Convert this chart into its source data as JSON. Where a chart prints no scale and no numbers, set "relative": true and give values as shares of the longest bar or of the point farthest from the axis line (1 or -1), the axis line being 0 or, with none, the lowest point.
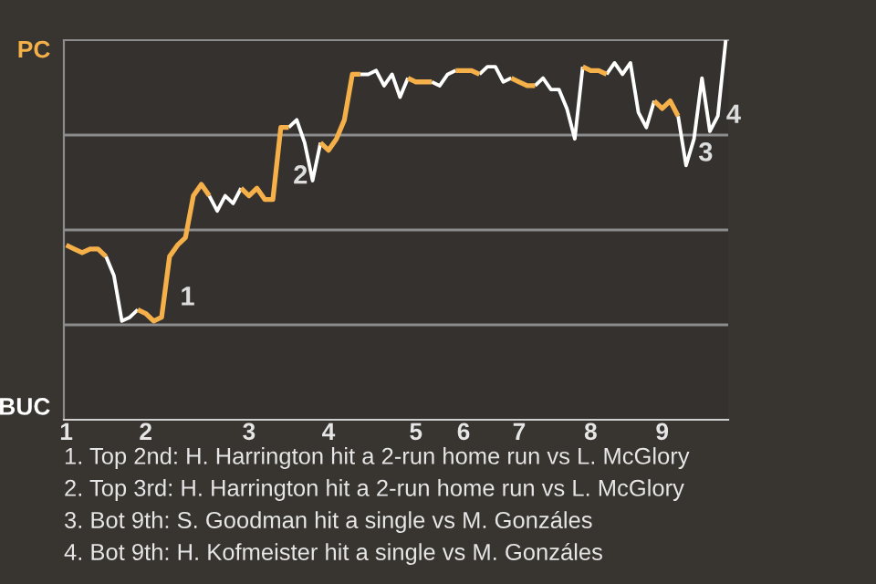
{
  "chart_data": {
    "type": "line",
    "relative": true,
    "categories": [
      "1",
      null,
      null,
      null,
      null,
      null,
      null,
      null,
      null,
      null,
      "2",
      null,
      null,
      null,
      null,
      null,
      null,
      null,
      null,
      null,
      null,
      null,
      null,
      "3",
      null,
      null,
      null,
      null,
      null,
      null,
      null,
      null,
      null,
      "4",
      null,
      null,
      null,
      null,
      null,
      null,
      null,
      null,
      null,
      null,
      "5",
      null,
      null,
      null,
      null,
      null,
      "6",
      null,
      null,
      null,
      null,
      null,
      null,
      "7",
      null,
      null,
      null,
      null,
      null,
      null,
      null,
      null,
      "8",
      null,
      null,
      null,
      null,
      null,
      null,
      null,
      null,
      "9",
      null,
      null,
      null,
      null,
      null,
      null,
      null,
      null
    ],
    "series": [
      {
        "color": "#f5b04a",
        "values": [
          0.46,
          0.45,
          0.44,
          0.45,
          0.45,
          0.43,
          null,
          null,
          null,
          0.29,
          0.28,
          0.26,
          0.27,
          0.43,
          0.46,
          0.48,
          0.59,
          0.62,
          0.59,
          null,
          null,
          null,
          0.61,
          0.59,
          0.61,
          0.58,
          0.58,
          0.77,
          0.77,
          null,
          null,
          null,
          0.73,
          0.71,
          0.74,
          0.79,
          0.91,
          0.91,
          null,
          null,
          null,
          null,
          null,
          0.9,
          0.89,
          0.89,
          0.89,
          null,
          null,
          0.92,
          0.92,
          0.92,
          0.91,
          null,
          null,
          null,
          0.9,
          0.89,
          0.88,
          0.88,
          null,
          null,
          null,
          null,
          null,
          0.93,
          0.92,
          0.92,
          0.91,
          null,
          null,
          null,
          null,
          null,
          0.84,
          0.82,
          0.84,
          0.8,
          null,
          null,
          null,
          null,
          null,
          null
        ]
      },
      {
        "color": "#ffffff",
        "values": [
          null,
          null,
          null,
          null,
          null,
          0.43,
          0.38,
          0.26,
          0.27,
          0.29,
          null,
          null,
          null,
          null,
          null,
          null,
          null,
          null,
          0.59,
          0.55,
          0.59,
          0.57,
          0.61,
          null,
          null,
          null,
          null,
          null,
          0.77,
          0.79,
          0.73,
          0.63,
          0.73,
          null,
          null,
          null,
          null,
          0.91,
          0.91,
          0.92,
          0.88,
          0.91,
          0.85,
          0.9,
          null,
          null,
          0.89,
          0.88,
          0.91,
          0.92,
          null,
          null,
          0.91,
          0.93,
          0.93,
          0.89,
          0.9,
          null,
          null,
          0.88,
          0.9,
          0.87,
          0.87,
          0.82,
          0.74,
          0.93,
          null,
          null,
          0.91,
          0.94,
          0.91,
          0.94,
          0.81,
          0.77,
          0.84,
          null,
          null,
          0.8,
          0.67,
          0.74,
          0.9,
          0.76,
          0.8,
          1.0
        ]
      }
    ],
    "ref_lines": [
      {
        "axis": "y",
        "value": 0.25,
        "color": "#8c8c8c"
      },
      {
        "axis": "y",
        "value": 0.5,
        "color": "#8c8c8c"
      },
      {
        "axis": "y",
        "value": 0.75,
        "color": "#8c8c8c"
      }
    ],
    "annotations": [
      "PC",
      "BUC",
      "1",
      "2",
      "3",
      "4",
      "1. Top 2nd: H. Harrington hit a 2-run home run vs L. McGlory",
      "2. Top 3rd: H. Harrington hit a 2-run home run vs L. McGlory",
      "3. Bot 9th: S. Goodman hit a single vs M. Gonzáles",
      "4. Bot 9th: H. Kofmeister hit a single vs M. Gonzáles"
    ],
    "grid": false,
    "legend": false,
    "marker": "none",
    "line_style": "solid"
  }
}
